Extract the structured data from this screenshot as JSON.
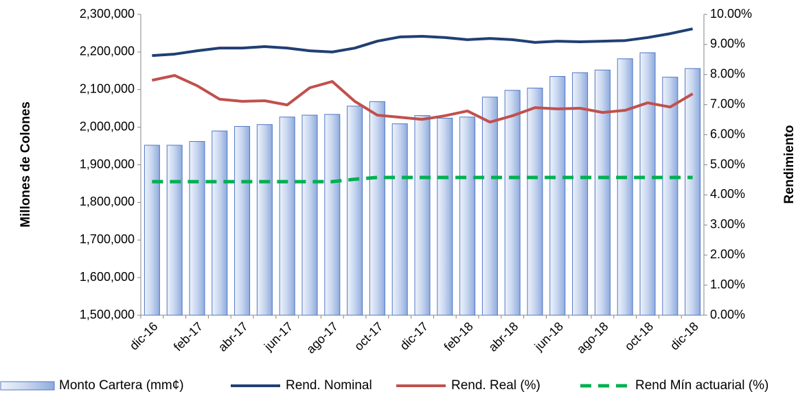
{
  "chart_data": {
    "type": "bar",
    "y_label": "Millones de Colones",
    "y2_label": "Rendimiento",
    "legend": "bottom",
    "categories": [
      "dic-16",
      null,
      "feb-17",
      null,
      "abr-17",
      null,
      "jun-17",
      null,
      "ago-17",
      null,
      "oct-17",
      null,
      "dic-17",
      null,
      "feb-18",
      null,
      "abr-18",
      null,
      "jun-18",
      null,
      "ago-18",
      null,
      "oct-18",
      null,
      "dic-18"
    ],
    "series": [
      {
        "name": "Monto Cartera (mm¢)",
        "type": "bar",
        "axis": "y",
        "color": "#4f76c4",
        "values": [
          1952000,
          1952000,
          1962000,
          1990000,
          2002000,
          2007000,
          2027000,
          2032000,
          2034000,
          2056000,
          2068000,
          2009000,
          2031000,
          2024000,
          2027000,
          2080000,
          2098000,
          2104000,
          2135000,
          2145000,
          2152000,
          2182000,
          2198000,
          2133000,
          2156000
        ]
      },
      {
        "name": "Rend. Nominal",
        "type": "line",
        "axis": "y2",
        "color": "#203f73",
        "values": [
          8.63,
          8.68,
          8.79,
          8.88,
          8.88,
          8.93,
          8.88,
          8.79,
          8.75,
          8.88,
          9.11,
          9.25,
          9.27,
          9.23,
          9.16,
          9.2,
          9.16,
          9.07,
          9.11,
          9.09,
          9.11,
          9.13,
          9.23,
          9.36,
          9.52
        ]
      },
      {
        "name": "Rend. Real (%)",
        "type": "line",
        "axis": "y2",
        "color": "#c0504d",
        "values": [
          7.81,
          7.97,
          7.63,
          7.18,
          7.11,
          7.13,
          6.99,
          7.56,
          7.77,
          7.11,
          6.65,
          6.58,
          6.51,
          6.63,
          6.79,
          6.42,
          6.63,
          6.9,
          6.86,
          6.88,
          6.74,
          6.81,
          7.06,
          6.92,
          7.36
        ]
      },
      {
        "name": "Rend Mín actuarial (%)",
        "type": "dashed",
        "axis": "y2",
        "color": "#00b050",
        "values": [
          4.44,
          4.44,
          4.44,
          4.44,
          4.44,
          4.44,
          4.44,
          4.44,
          4.44,
          4.52,
          4.58,
          4.58,
          4.58,
          4.58,
          4.58,
          4.58,
          4.58,
          4.58,
          4.58,
          4.58,
          4.58,
          4.58,
          4.58,
          4.58,
          4.58
        ]
      }
    ],
    "ylim": [
      1500000,
      2300000
    ],
    "yticks": [
      {
        "value": 1500000,
        "label": "1,500,000"
      },
      {
        "value": 1600000,
        "label": "1,600,000"
      },
      {
        "value": 1700000,
        "label": "1,700,000"
      },
      {
        "value": 1800000,
        "label": "1,800,000"
      },
      {
        "value": 1900000,
        "label": "1,900,000"
      },
      {
        "value": 2000000,
        "label": "2,000,000"
      },
      {
        "value": 2100000,
        "label": "2,100,000"
      },
      {
        "value": 2200000,
        "label": "2,200,000"
      },
      {
        "value": 2300000,
        "label": "2,300,000"
      }
    ],
    "y2lim": [
      0,
      10
    ],
    "y2ticks": [
      {
        "value": 0,
        "label": "0.00%"
      },
      {
        "value": 1,
        "label": "1.00%"
      },
      {
        "value": 2,
        "label": "2.00%"
      },
      {
        "value": 3,
        "label": "3.00%"
      },
      {
        "value": 4,
        "label": "4.00%"
      },
      {
        "value": 5,
        "label": "5.00%"
      },
      {
        "value": 6,
        "label": "6.00%"
      },
      {
        "value": 7,
        "label": "7.00%"
      },
      {
        "value": 8,
        "label": "8.00%"
      },
      {
        "value": 9,
        "label": "9.00%"
      },
      {
        "value": 10,
        "label": "10.00%"
      }
    ]
  }
}
